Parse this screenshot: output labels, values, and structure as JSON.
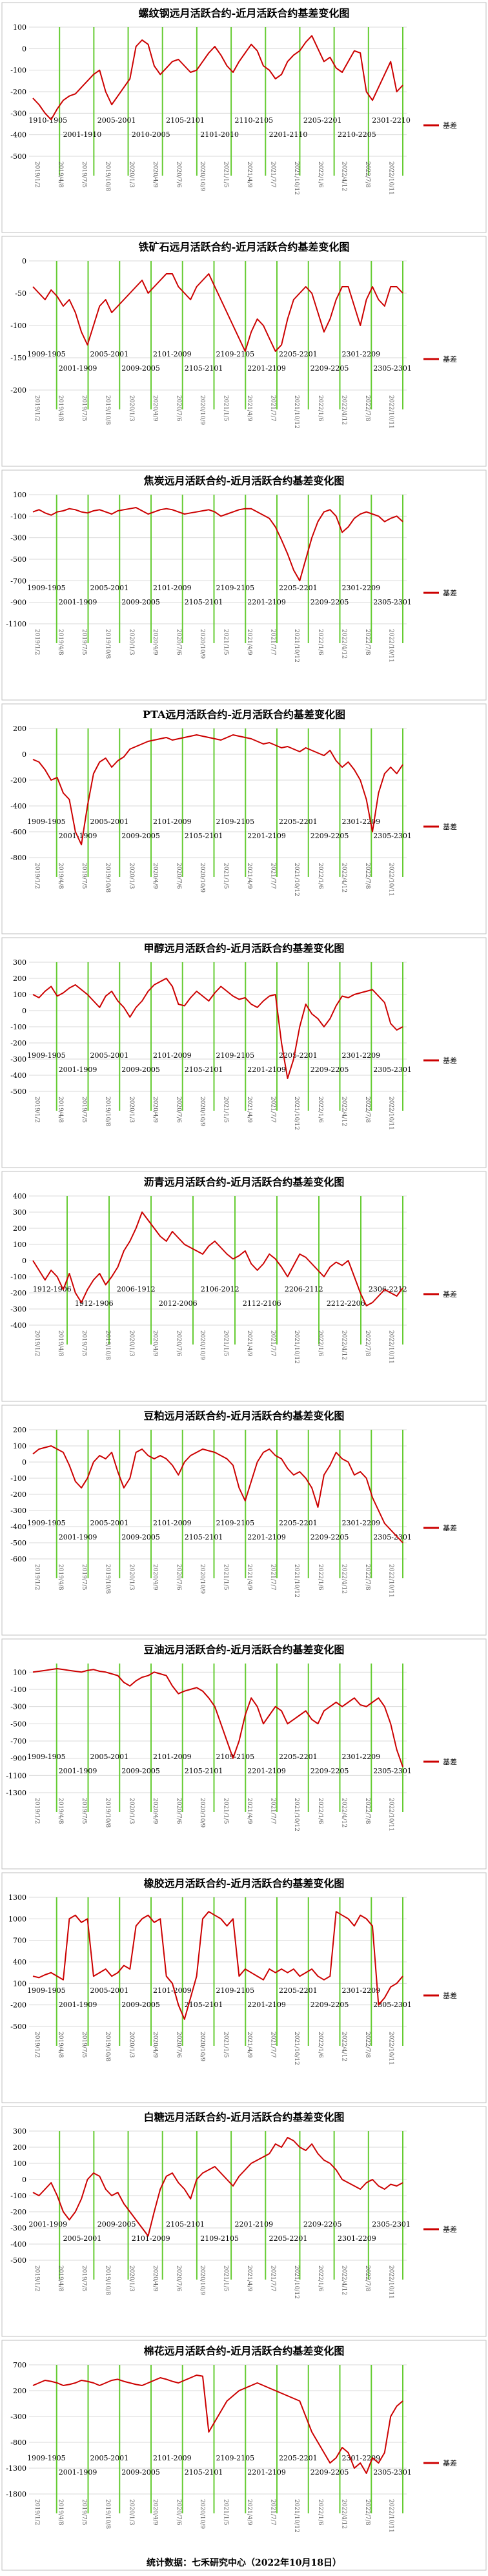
{
  "colors": {
    "line": "#cc0000",
    "divider": "#66cc33",
    "grid": "#d9d9d9",
    "axis": "#999999"
  },
  "footer": {
    "text": "统计数据：七禾研究中心（2022年10月18日）"
  },
  "chart_data": [
    {
      "type": "line",
      "title": "螺纹钢远月活跃合约-近月活跃合约基差变化图",
      "legend": "基差",
      "legend_position": "right",
      "ylim": [
        -500,
        100
      ],
      "yticks": [
        -500,
        -400,
        -300,
        -200,
        -100,
        0,
        100
      ],
      "period_labels": [
        "1910-1905",
        "2001-1910",
        "2005-2001",
        "2010-2005",
        "2105-2101",
        "2101-2010",
        "2110-2105",
        "2201-2110",
        "2205-2201",
        "2210-2205",
        "2301-2210"
      ],
      "series": [
        {
          "values": [
            -230,
            -260,
            -300,
            -330,
            -280,
            -240,
            -220,
            -210,
            -180,
            -150,
            -120,
            -100,
            -200,
            -260,
            -220,
            -180,
            -140,
            10,
            40,
            20,
            -80,
            -120,
            -90,
            -60,
            -50,
            -80,
            -110,
            -100,
            -60,
            -20,
            10,
            -30,
            -80,
            -110,
            -60,
            -20,
            20,
            -10,
            -80,
            -100,
            -140,
            -120,
            -60,
            -30,
            -10,
            30,
            60,
            0,
            -60,
            -40,
            -90,
            -110,
            -60,
            -10,
            -20,
            -200,
            -240,
            -180,
            -120,
            -60,
            -200,
            -170
          ]
        }
      ]
    },
    {
      "type": "line",
      "title": "铁矿石远月活跃合约-近月活跃合约基差变化图",
      "legend": "基差",
      "legend_position": "right",
      "ylim": [
        -200,
        0
      ],
      "yticks": [
        -200,
        -150,
        -100,
        -50,
        0
      ],
      "period_labels": [
        "1909-1905",
        "2001-1909",
        "2005-2001",
        "2009-2005",
        "2101-2009",
        "2105-2101",
        "2109-2105",
        "2201-2109",
        "2205-2201",
        "2209-2205",
        "2301-2209",
        "2305-2301"
      ],
      "series": [
        {
          "values": [
            -40,
            -50,
            -60,
            -45,
            -55,
            -70,
            -60,
            -80,
            -110,
            -130,
            -100,
            -70,
            -60,
            -80,
            -70,
            -60,
            -50,
            -40,
            -30,
            -50,
            -40,
            -30,
            -20,
            -20,
            -40,
            -50,
            -60,
            -40,
            -30,
            -20,
            -40,
            -60,
            -80,
            -100,
            -120,
            -140,
            -110,
            -90,
            -100,
            -120,
            -140,
            -130,
            -90,
            -60,
            -50,
            -40,
            -50,
            -80,
            -110,
            -90,
            -60,
            -40,
            -40,
            -70,
            -100,
            -60,
            -40,
            -60,
            -70,
            -40,
            -40,
            -50
          ]
        }
      ]
    },
    {
      "type": "line",
      "title": "焦炭远月活跃合约-近月活跃合约基差变化图",
      "legend": "基差",
      "legend_position": "right",
      "ylim": [
        -1100,
        100
      ],
      "yticks": [
        -1100,
        -900,
        -700,
        -500,
        -300,
        -100,
        100
      ],
      "period_labels": [
        "1909-1905",
        "2001-1909",
        "2005-2001",
        "2009-2005",
        "2101-2009",
        "2105-2101",
        "2109-2105",
        "2201-2109",
        "2205-2201",
        "2209-2205",
        "2301-2209",
        "2305-2301"
      ],
      "series": [
        {
          "values": [
            -60,
            -40,
            -70,
            -90,
            -60,
            -50,
            -30,
            -40,
            -60,
            -70,
            -50,
            -40,
            -60,
            -80,
            -50,
            -40,
            -30,
            -20,
            -50,
            -80,
            -60,
            -40,
            -30,
            -40,
            -60,
            -80,
            -70,
            -60,
            -50,
            -40,
            -60,
            -100,
            -80,
            -60,
            -40,
            -30,
            -30,
            -60,
            -90,
            -120,
            -200,
            -320,
            -450,
            -600,
            -700,
            -500,
            -300,
            -150,
            -60,
            -40,
            -100,
            -250,
            -200,
            -120,
            -80,
            -60,
            -80,
            -100,
            -150,
            -120,
            -100,
            -150
          ]
        }
      ]
    },
    {
      "type": "line",
      "title": "PTA远月活跃合约-近月活跃合约基差变化图",
      "legend": "基差",
      "legend_position": "right",
      "ylim": [
        -800,
        200
      ],
      "yticks": [
        -800,
        -600,
        -400,
        -200,
        0,
        200
      ],
      "period_labels": [
        "1909-1905",
        "2001-1909",
        "2005-2001",
        "2009-2005",
        "2101-2009",
        "2105-2101",
        "2109-2105",
        "2201-2109",
        "2205-2201",
        "2209-2205",
        "2301-2209",
        "2305-2301"
      ],
      "series": [
        {
          "values": [
            -40,
            -60,
            -120,
            -200,
            -180,
            -300,
            -350,
            -600,
            -700,
            -400,
            -150,
            -60,
            -30,
            -100,
            -50,
            -20,
            40,
            60,
            80,
            100,
            110,
            120,
            130,
            110,
            120,
            130,
            140,
            150,
            140,
            130,
            120,
            110,
            130,
            150,
            140,
            130,
            120,
            100,
            80,
            90,
            70,
            50,
            60,
            40,
            20,
            50,
            30,
            10,
            -10,
            30,
            -50,
            -100,
            -60,
            -120,
            -200,
            -350,
            -600,
            -300,
            -150,
            -100,
            -150,
            -80
          ]
        }
      ]
    },
    {
      "type": "line",
      "title": "甲醇远月活跃合约-近月活跃合约基差变化图",
      "legend": "基差",
      "legend_position": "right",
      "ylim": [
        -500,
        300
      ],
      "yticks": [
        -500,
        -400,
        -300,
        -200,
        -100,
        0,
        100,
        200,
        300
      ],
      "period_labels": [
        "1909-1905",
        "2001-1909",
        "2005-2001",
        "2009-2005",
        "2101-2009",
        "2105-2101",
        "2109-2105",
        "2201-2109",
        "2205-2201",
        "2209-2205",
        "2301-2209",
        "2305-2301"
      ],
      "series": [
        {
          "values": [
            100,
            80,
            120,
            150,
            90,
            110,
            140,
            160,
            130,
            100,
            60,
            20,
            90,
            120,
            60,
            20,
            -40,
            20,
            60,
            120,
            160,
            180,
            200,
            150,
            40,
            30,
            80,
            120,
            90,
            60,
            110,
            150,
            120,
            90,
            70,
            80,
            40,
            20,
            60,
            90,
            100,
            -200,
            -420,
            -300,
            -100,
            40,
            -20,
            -50,
            -100,
            -50,
            30,
            90,
            80,
            100,
            110,
            120,
            130,
            90,
            50,
            -80,
            -120,
            -100
          ]
        }
      ]
    },
    {
      "type": "line",
      "title": "沥青远月活跃合约-近月活跃合约基差变化图",
      "legend": "基差",
      "legend_position": "right",
      "ylim": [
        -400,
        400
      ],
      "yticks": [
        -400,
        -300,
        -200,
        -100,
        0,
        100,
        200,
        300,
        400
      ],
      "period_labels": [
        "1912-1906",
        "1912-1906",
        "2006-1912",
        "2012-2006",
        "2106-2012",
        "2112-2106",
        "2206-2112",
        "2212-2206",
        "2306-2212"
      ],
      "series": [
        {
          "values": [
            0,
            -60,
            -120,
            -60,
            -100,
            -180,
            -80,
            -200,
            -260,
            -180,
            -120,
            -80,
            -150,
            -100,
            -40,
            60,
            120,
            200,
            300,
            250,
            200,
            150,
            120,
            180,
            140,
            100,
            80,
            60,
            40,
            90,
            120,
            80,
            40,
            10,
            30,
            60,
            -20,
            -60,
            -20,
            40,
            10,
            -40,
            -100,
            -30,
            40,
            20,
            -20,
            -60,
            -100,
            -40,
            -10,
            -30,
            0,
            -100,
            -200,
            -280,
            -260,
            -220,
            -180,
            -200,
            -220,
            -170
          ]
        }
      ]
    },
    {
      "type": "line",
      "title": "豆粕远月活跃合约-近月活跃合约基差变化图",
      "legend": "基差",
      "legend_position": "right",
      "ylim": [
        -600,
        200
      ],
      "yticks": [
        -600,
        -500,
        -400,
        -300,
        -200,
        -100,
        0,
        100,
        200
      ],
      "period_labels": [
        "1909-1905",
        "2001-1909",
        "2005-2001",
        "2009-2005",
        "2101-2009",
        "2105-2101",
        "2109-2105",
        "2201-2109",
        "2205-2201",
        "2209-2205",
        "2301-2209",
        "2305-2301"
      ],
      "series": [
        {
          "values": [
            50,
            80,
            90,
            100,
            80,
            60,
            -20,
            -120,
            -160,
            -100,
            0,
            40,
            20,
            60,
            -60,
            -160,
            -100,
            60,
            80,
            40,
            20,
            40,
            20,
            -20,
            -80,
            0,
            40,
            60,
            80,
            70,
            60,
            40,
            20,
            -20,
            -160,
            -240,
            -120,
            0,
            60,
            80,
            40,
            20,
            -40,
            -80,
            -60,
            -100,
            -160,
            -280,
            -80,
            -20,
            60,
            20,
            0,
            -80,
            -60,
            -100,
            -220,
            -300,
            -380,
            -420,
            -460,
            -500
          ]
        }
      ]
    },
    {
      "type": "line",
      "title": "豆油远月活跃合约-近月活跃合约基差变化图",
      "legend": "基差",
      "legend_position": "right",
      "ylim": [
        -1300,
        200
      ],
      "yticks": [
        -1300,
        -1100,
        -900,
        -700,
        -500,
        -300,
        -100,
        100
      ],
      "period_labels": [
        "1909-1905",
        "2001-1909",
        "2005-2001",
        "2009-2005",
        "2101-2009",
        "2105-2101",
        "2109-2105",
        "2201-2109",
        "2205-2201",
        "2209-2205",
        "2301-2209",
        "2305-2301"
      ],
      "series": [
        {
          "values": [
            100,
            110,
            120,
            130,
            140,
            130,
            120,
            110,
            100,
            120,
            130,
            110,
            100,
            80,
            60,
            -20,
            -60,
            0,
            40,
            60,
            100,
            80,
            60,
            -60,
            -150,
            -120,
            -100,
            -80,
            -120,
            -200,
            -300,
            -500,
            -700,
            -900,
            -700,
            -400,
            -200,
            -300,
            -500,
            -400,
            -300,
            -350,
            -500,
            -450,
            -400,
            -350,
            -450,
            -500,
            -350,
            -300,
            -250,
            -300,
            -250,
            -200,
            -280,
            -300,
            -250,
            -200,
            -300,
            -500,
            -800,
            -1000
          ]
        }
      ]
    },
    {
      "type": "line",
      "title": "橡胶远月活跃合约-近月活跃合约基差变化图",
      "legend": "基差",
      "legend_position": "right",
      "ylim": [
        -500,
        1300
      ],
      "yticks": [
        -500,
        -200,
        100,
        400,
        700,
        1000,
        1300
      ],
      "period_labels": [
        "1909-1905",
        "2001-1909",
        "2005-2001",
        "2009-2005",
        "2101-2009",
        "2105-2101",
        "2109-2105",
        "2201-2109",
        "2205-2201",
        "2209-2205",
        "2301-2209",
        "2305-2301"
      ],
      "series": [
        {
          "values": [
            200,
            180,
            220,
            250,
            200,
            150,
            1000,
            1050,
            950,
            1000,
            200,
            250,
            300,
            200,
            250,
            350,
            300,
            900,
            1000,
            1050,
            950,
            1000,
            200,
            100,
            -200,
            -400,
            -100,
            200,
            1000,
            1100,
            1050,
            1000,
            900,
            1000,
            200,
            300,
            250,
            200,
            150,
            300,
            250,
            300,
            250,
            300,
            200,
            250,
            300,
            200,
            150,
            200,
            1100,
            1050,
            1000,
            900,
            1050,
            1000,
            900,
            -200,
            -100,
            50,
            100,
            200
          ]
        }
      ]
    },
    {
      "type": "line",
      "title": "白糖远月活跃合约-近月活跃合约基差变化图",
      "legend": "基差",
      "legend_position": "right",
      "ylim": [
        -500,
        300
      ],
      "yticks": [
        -500,
        -400,
        -300,
        -200,
        -100,
        0,
        100,
        200,
        300
      ],
      "period_labels": [
        "2001-1909",
        "2005-2001",
        "2009-2005",
        "2101-2009",
        "2105-2101",
        "2109-2105",
        "2201-2109",
        "2205-2201",
        "2209-2205",
        "2301-2209",
        "2305-2301"
      ],
      "series": [
        {
          "values": [
            -80,
            -100,
            -60,
            -20,
            -100,
            -200,
            -250,
            -200,
            -120,
            0,
            40,
            20,
            -60,
            -100,
            -80,
            -150,
            -200,
            -250,
            -300,
            -350,
            -200,
            -60,
            20,
            40,
            -20,
            -60,
            -120,
            0,
            40,
            60,
            80,
            40,
            0,
            -40,
            20,
            60,
            100,
            120,
            140,
            160,
            220,
            200,
            260,
            240,
            200,
            180,
            220,
            160,
            120,
            100,
            60,
            0,
            -20,
            -40,
            -60,
            -20,
            0,
            -40,
            -60,
            -30,
            -40,
            -20
          ]
        }
      ]
    },
    {
      "type": "line",
      "title": "棉花远月活跃合约-近月活跃合约基差变化图",
      "legend": "基差",
      "legend_position": "right",
      "ylim": [
        -1800,
        700
      ],
      "yticks": [
        -1800,
        -1300,
        -800,
        -300,
        200,
        700
      ],
      "period_labels": [
        "1909-1905",
        "2001-1909",
        "2005-2001",
        "2009-2005",
        "2101-2009",
        "2105-2101",
        "2109-2105",
        "2201-2109",
        "2205-2201",
        "2209-2205",
        "2301-2209",
        "2305-2301"
      ],
      "series": [
        {
          "values": [
            300,
            350,
            400,
            380,
            350,
            300,
            320,
            350,
            400,
            380,
            350,
            300,
            350,
            400,
            420,
            380,
            350,
            320,
            300,
            350,
            400,
            450,
            420,
            380,
            350,
            400,
            450,
            500,
            480,
            -600,
            -400,
            -200,
            0,
            100,
            200,
            250,
            300,
            350,
            300,
            250,
            200,
            150,
            100,
            50,
            0,
            -300,
            -600,
            -800,
            -1000,
            -1200,
            -1100,
            -900,
            -1000,
            -1300,
            -1200,
            -1400,
            -1100,
            -1200,
            -1000,
            -300,
            -100,
            0
          ]
        }
      ]
    }
  ]
}
